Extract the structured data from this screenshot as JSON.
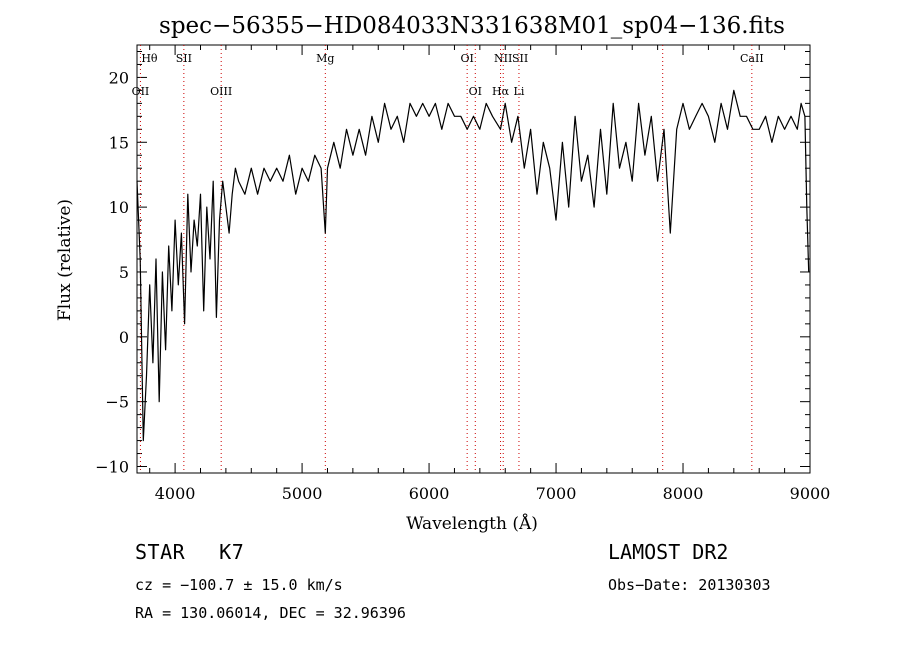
{
  "chart_data": {
    "type": "line",
    "title": "spec−56355−HD084033N331638M01_sp04−136.fits",
    "xlabel": "Wavelength (Å)",
    "ylabel": "Flux (relative)",
    "xlim": [
      3700,
      9000
    ],
    "ylim": [
      -10.5,
      22.5
    ],
    "xticks": [
      4000,
      5000,
      6000,
      7000,
      8000,
      9000
    ],
    "yticks": [
      -10,
      -5,
      0,
      5,
      10,
      15,
      20
    ],
    "xtick_labels": [
      "4000",
      "5000",
      "6000",
      "7000",
      "8000",
      "9000"
    ],
    "ytick_labels": [
      "−10",
      "−5",
      "0",
      "5",
      "10",
      "15",
      "20"
    ],
    "grid": false,
    "series": [
      {
        "name": "",
        "x": [
          3700,
          3725,
          3750,
          3775,
          3800,
          3825,
          3850,
          3875,
          3900,
          3925,
          3950,
          3975,
          4000,
          4025,
          4050,
          4075,
          4100,
          4125,
          4150,
          4175,
          4200,
          4225,
          4250,
          4275,
          4300,
          4325,
          4350,
          4375,
          4400,
          4425,
          4450,
          4475,
          4500,
          4550,
          4600,
          4650,
          4700,
          4750,
          4800,
          4850,
          4900,
          4950,
          5000,
          5050,
          5100,
          5150,
          5183,
          5200,
          5250,
          5300,
          5350,
          5400,
          5450,
          5500,
          5550,
          5600,
          5650,
          5700,
          5750,
          5800,
          5850,
          5900,
          5950,
          6000,
          6050,
          6100,
          6150,
          6200,
          6250,
          6300,
          6350,
          6400,
          6450,
          6500,
          6563,
          6600,
          6650,
          6700,
          6750,
          6800,
          6850,
          6900,
          6950,
          7000,
          7050,
          7100,
          7150,
          7200,
          7250,
          7300,
          7350,
          7400,
          7450,
          7500,
          7550,
          7600,
          7650,
          7700,
          7750,
          7800,
          7850,
          7900,
          7950,
          8000,
          8050,
          8100,
          8150,
          8200,
          8250,
          8300,
          8350,
          8400,
          8450,
          8500,
          8550,
          8600,
          8650,
          8700,
          8750,
          8800,
          8850,
          8900,
          8930,
          8960,
          8975,
          8990
        ],
        "y": [
          12,
          6,
          -8,
          -3,
          4,
          -2,
          6,
          -5,
          5,
          -1,
          7,
          2,
          9,
          4,
          8,
          1,
          11,
          5,
          9,
          7,
          11,
          2,
          10,
          6,
          12,
          1.5,
          9,
          12,
          10,
          8,
          11,
          13,
          12,
          11,
          13,
          11,
          13,
          12,
          13,
          12,
          14,
          11,
          13,
          12,
          14,
          13,
          8,
          13,
          15,
          13,
          16,
          14,
          16,
          14,
          17,
          15,
          18,
          16,
          17,
          15,
          18,
          17,
          18,
          17,
          18,
          16,
          18,
          17,
          17,
          16,
          17,
          16,
          18,
          17,
          16,
          18,
          15,
          17,
          13,
          16,
          11,
          15,
          13,
          9,
          15,
          10,
          17,
          12,
          14,
          10,
          16,
          11,
          18,
          13,
          15,
          12,
          18,
          14,
          17,
          12,
          16,
          8,
          16,
          18,
          16,
          17,
          18,
          17,
          15,
          18,
          16,
          19,
          17,
          17,
          16,
          16,
          17,
          15,
          17,
          16,
          17,
          16,
          18,
          17,
          10,
          5
        ]
      }
    ],
    "annotations": {
      "upper": [
        {
          "label": "Hθ",
          "x": 3798
        },
        {
          "label": "SII",
          "x": 4069
        },
        {
          "label": "Mg",
          "x": 5183
        },
        {
          "label": "OI",
          "x": 6300
        },
        {
          "label": "NII",
          "x": 6584
        },
        {
          "label": "SII",
          "x": 6717
        },
        {
          "label": "CaII",
          "x": 8542
        }
      ],
      "lower": [
        {
          "label": "OII",
          "x": 3727
        },
        {
          "label": "OIII",
          "x": 4363
        },
        {
          "label": "OI",
          "x": 6364
        },
        {
          "label": "Hα",
          "x": 6563
        },
        {
          "label": "Li",
          "x": 6708
        }
      ],
      "line_wavelengths": [
        3727,
        4069,
        4363,
        5183,
        6300,
        6364,
        6563,
        6584,
        6708,
        7840,
        8542
      ]
    },
    "colors": {
      "spectrum": "#000000",
      "marker_lines": "#cc0000",
      "axes": "#000000"
    }
  },
  "info": {
    "object_class": "STAR",
    "subclass": "K7",
    "survey": "LAMOST DR2",
    "cz": "cz = −100.7 ± 15.0 km/s",
    "obs_date": "Obs−Date: 20130303",
    "coords": "RA = 130.06014, DEC =  32.96396"
  }
}
